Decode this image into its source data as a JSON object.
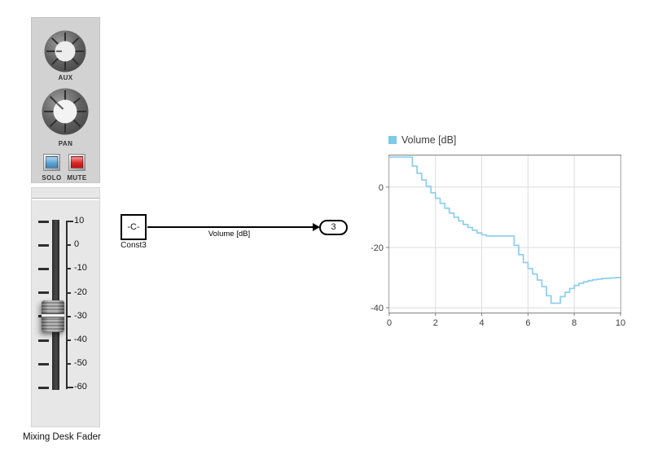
{
  "mixer": {
    "title": "Mixing Desk Fader",
    "knobs": [
      {
        "label": "AUX"
      },
      {
        "label": "PAN"
      }
    ],
    "buttons": [
      {
        "label": "SOLO",
        "color": "#54a0d8"
      },
      {
        "label": "MUTE",
        "color": "#dd1a1a"
      }
    ],
    "fader": {
      "max": 10,
      "min": -60,
      "value": -30,
      "scale_labels": [
        "10",
        "0",
        "-10",
        "-20",
        "-30",
        "-40",
        "-50",
        "-60"
      ]
    }
  },
  "diagram": {
    "const_block": {
      "text": "-C-",
      "name": "Const3"
    },
    "wire_label": "Volume [dB]",
    "outport": {
      "text": "3"
    }
  },
  "chart_data": {
    "type": "line",
    "step": "after",
    "legend": [
      {
        "label": "Volume [dB]",
        "color": "#7ec9ea"
      }
    ],
    "xlim": [
      0,
      10
    ],
    "ylim": [
      -41.6,
      10.5
    ],
    "xticks": [
      0,
      2,
      4,
      6,
      8,
      10
    ],
    "yticks": [
      0,
      -20,
      -40
    ],
    "grid": true,
    "x": [
      0,
      0.2,
      0.4,
      0.6,
      0.8,
      1,
      1.2,
      1.4,
      1.6,
      1.8,
      2,
      2.2,
      2.4,
      2.6,
      2.8,
      3,
      3.2,
      3.4,
      3.6,
      3.8,
      4,
      4.2,
      4.4,
      4.6,
      4.8,
      5,
      5.2,
      5.4,
      5.6,
      5.8,
      6,
      6.2,
      6.4,
      6.6,
      6.8,
      7,
      7.2,
      7.4,
      7.6,
      7.8,
      8,
      8.2,
      8.4,
      8.6,
      8.8,
      9,
      9.2,
      9.4,
      9.6,
      9.8,
      10
    ],
    "series": [
      {
        "name": "Volume [dB]",
        "color": "#8fd0ee",
        "values": [
          10,
          10,
          10,
          10,
          10,
          7,
          4.6,
          2.4,
          0.3,
          -1.9,
          -3.7,
          -5.4,
          -7,
          -8.6,
          -10,
          -11.2,
          -12.4,
          -13.4,
          -14.3,
          -15.2,
          -15.8,
          -16.2,
          -16.2,
          -16.2,
          -16.2,
          -16.2,
          -16.2,
          -19.3,
          -22.4,
          -25,
          -27,
          -28.8,
          -30.8,
          -33,
          -36,
          -38.5,
          -38.5,
          -36.3,
          -34.9,
          -33.6,
          -32.6,
          -31.9,
          -31.4,
          -31,
          -30.7,
          -30.5,
          -30.3,
          -30.2,
          -30.1,
          -30,
          -30
        ]
      }
    ]
  }
}
